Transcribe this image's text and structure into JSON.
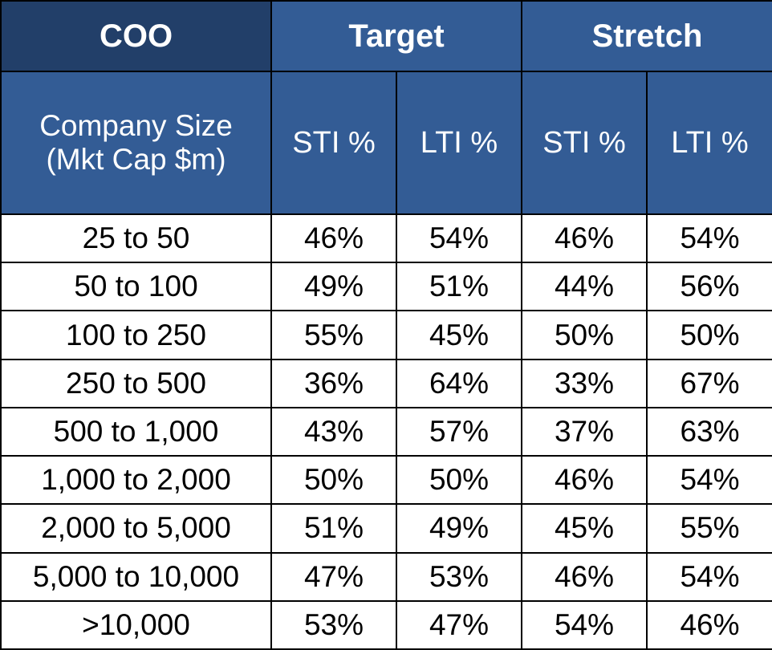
{
  "table": {
    "title": "COO",
    "groups": [
      "Target",
      "Stretch"
    ],
    "size_header": [
      "Company Size",
      "(Mkt Cap $m)"
    ],
    "subheaders": [
      "STI %",
      "LTI %",
      "STI %",
      "LTI %"
    ],
    "rows": [
      {
        "size": "25 to 50",
        "target_sti": "46%",
        "target_lti": "54%",
        "stretch_sti": "46%",
        "stretch_lti": "54%"
      },
      {
        "size": "50 to 100",
        "target_sti": "49%",
        "target_lti": "51%",
        "stretch_sti": "44%",
        "stretch_lti": "56%"
      },
      {
        "size": "100 to 250",
        "target_sti": "55%",
        "target_lti": "45%",
        "stretch_sti": "50%",
        "stretch_lti": "50%"
      },
      {
        "size": "250 to 500",
        "target_sti": "36%",
        "target_lti": "64%",
        "stretch_sti": "33%",
        "stretch_lti": "67%"
      },
      {
        "size": "500 to 1,000",
        "target_sti": "43%",
        "target_lti": "57%",
        "stretch_sti": "37%",
        "stretch_lti": "63%"
      },
      {
        "size": "1,000 to 2,000",
        "target_sti": "50%",
        "target_lti": "50%",
        "stretch_sti": "46%",
        "stretch_lti": "54%"
      },
      {
        "size": "2,000 to 5,000",
        "target_sti": "51%",
        "target_lti": "49%",
        "stretch_sti": "45%",
        "stretch_lti": "55%"
      },
      {
        "size": "5,000 to 10,000",
        "target_sti": "47%",
        "target_lti": "53%",
        "stretch_sti": "46%",
        "stretch_lti": "54%"
      },
      {
        "size": ">10,000",
        "target_sti": "53%",
        "target_lti": "47%",
        "stretch_sti": "54%",
        "stretch_lti": "46%"
      }
    ]
  },
  "colors": {
    "title_bg": "#223f69",
    "header_bg": "#335c95",
    "header_text": "#ffffff",
    "border": "#000000",
    "body_bg": "#ffffff"
  }
}
